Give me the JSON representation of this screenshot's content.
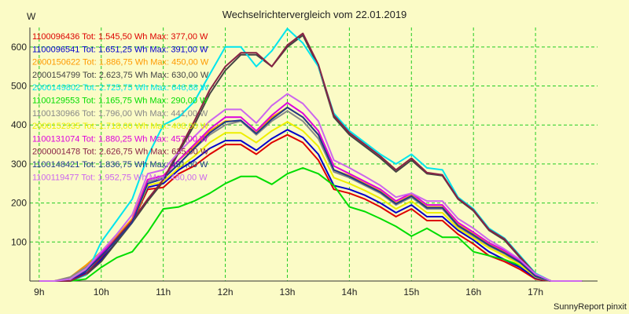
{
  "chart_data": {
    "type": "line",
    "title": "Wechselrichtervergleich vom 22.01.2019",
    "ylabel": "W",
    "xlabel": "",
    "footer": "SunnyReport pinxit",
    "ylim": [
      0,
      650
    ],
    "yticks": [
      100,
      200,
      300,
      400,
      500,
      600
    ],
    "xticks": [
      "9h",
      "10h",
      "11h",
      "12h",
      "13h",
      "14h",
      "15h",
      "16h",
      "17h"
    ],
    "grid": true,
    "grid_color": "#22cc22",
    "legend_position": "top-left",
    "x": [
      9.0,
      9.25,
      9.5,
      9.75,
      10.0,
      10.25,
      10.5,
      10.75,
      11.0,
      11.25,
      11.5,
      11.75,
      12.0,
      12.25,
      12.5,
      12.75,
      13.0,
      13.25,
      13.5,
      13.75,
      14.0,
      14.25,
      14.5,
      14.75,
      15.0,
      15.25,
      15.5,
      15.75,
      16.0,
      16.25,
      16.5,
      16.75,
      17.0,
      17.25,
      17.5,
      17.75
    ],
    "series": [
      {
        "name": "1100096436 Tot: 1.545,50 Wh Max: 377,00 W",
        "color": "#dd0000",
        "values": [
          0,
          0,
          5,
          20,
          55,
          100,
          150,
          235,
          240,
          275,
          295,
          325,
          350,
          350,
          325,
          355,
          375,
          355,
          310,
          235,
          225,
          210,
          190,
          165,
          185,
          155,
          155,
          120,
          95,
          65,
          50,
          30,
          5,
          0,
          0,
          0
        ]
      },
      {
        "name": "1100096541 Tot: 1.651,25 Wh Max: 391,00 W",
        "color": "#0000cc",
        "values": [
          0,
          0,
          5,
          20,
          55,
          100,
          155,
          240,
          250,
          285,
          310,
          340,
          360,
          360,
          335,
          365,
          388,
          368,
          325,
          245,
          235,
          220,
          200,
          175,
          195,
          165,
          165,
          130,
          105,
          75,
          55,
          35,
          8,
          0,
          0,
          0
        ]
      },
      {
        "name": "2000150622 Tot: 1.886,75 Wh Max: 450,00 W",
        "color": "#ff9900",
        "values": [
          0,
          0,
          10,
          40,
          75,
          115,
          160,
          260,
          270,
          310,
          345,
          385,
          410,
          410,
          380,
          420,
          445,
          420,
          375,
          285,
          270,
          250,
          230,
          200,
          220,
          190,
          190,
          145,
          120,
          95,
          75,
          50,
          15,
          0,
          0,
          0
        ]
      },
      {
        "name": "2000154799 Tot: 2.623,75 Wh Max: 630,00 W",
        "color": "#444444",
        "values": [
          0,
          0,
          0,
          15,
          50,
          100,
          150,
          205,
          255,
          330,
          400,
          480,
          540,
          580,
          580,
          550,
          600,
          630,
          550,
          420,
          375,
          345,
          315,
          280,
          310,
          275,
          270,
          210,
          180,
          130,
          105,
          60,
          15,
          0,
          0,
          0
        ]
      },
      {
        "name": "2000149802 Tot: 2.725,75 Wh Max: 646,88 W",
        "color": "#00e5ee",
        "values": [
          0,
          0,
          0,
          15,
          100,
          155,
          210,
          320,
          400,
          420,
          460,
          530,
          600,
          600,
          550,
          590,
          647,
          610,
          550,
          430,
          385,
          355,
          325,
          300,
          325,
          290,
          285,
          215,
          185,
          135,
          110,
          65,
          20,
          0,
          0,
          0
        ]
      },
      {
        "name": "1100129553 Tot: 1.165,75 Wh Max: 290,00 W",
        "color": "#00dd00",
        "values": [
          0,
          0,
          0,
          5,
          35,
          60,
          75,
          125,
          185,
          190,
          205,
          225,
          250,
          268,
          268,
          248,
          275,
          290,
          275,
          245,
          190,
          178,
          160,
          140,
          115,
          135,
          112,
          112,
          75,
          65,
          55,
          40,
          15,
          0,
          0,
          0
        ]
      },
      {
        "name": "1100130966 Tot: 1.796,00 Wh Max: 441,00 W",
        "color": "#888888",
        "values": [
          0,
          0,
          10,
          35,
          70,
          110,
          155,
          255,
          265,
          300,
          340,
          375,
          400,
          410,
          375,
          410,
          436,
          410,
          365,
          280,
          265,
          245,
          225,
          195,
          215,
          185,
          185,
          140,
          115,
          90,
          70,
          45,
          12,
          0,
          0,
          0
        ]
      },
      {
        "name": "2000152935 Tot: 1.718,00 Wh Max: 408,00 W",
        "color": "#eeee00",
        "values": [
          0,
          0,
          5,
          30,
          65,
          105,
          150,
          245,
          255,
          290,
          320,
          355,
          380,
          380,
          355,
          385,
          408,
          385,
          345,
          265,
          250,
          232,
          212,
          185,
          205,
          175,
          175,
          135,
          110,
          85,
          65,
          42,
          10,
          0,
          0,
          0
        ]
      },
      {
        "name": "1100131074 Tot: 1.880,25 Wh Max: 457,00 W",
        "color": "#dd00dd",
        "values": [
          0,
          0,
          5,
          25,
          70,
          110,
          155,
          260,
          270,
          310,
          350,
          390,
          420,
          420,
          385,
          425,
          457,
          430,
          385,
          295,
          275,
          255,
          235,
          205,
          225,
          195,
          195,
          150,
          125,
          98,
          78,
          52,
          15,
          0,
          0,
          0
        ]
      },
      {
        "name": "2000001478 Tot: 2.626,75 Wh Max: 635,00 W",
        "color": "#882244",
        "values": [
          0,
          0,
          0,
          18,
          60,
          110,
          155,
          210,
          260,
          335,
          410,
          490,
          550,
          585,
          585,
          550,
          605,
          635,
          555,
          425,
          380,
          350,
          320,
          285,
          315,
          278,
          272,
          212,
          182,
          132,
          108,
          62,
          18,
          0,
          0,
          0
        ]
      },
      {
        "name": "1100148421 Tot: 1.836,75 Wh Max: 451,00 W",
        "color": "#1f3a8a",
        "values": [
          0,
          0,
          5,
          25,
          65,
          105,
          150,
          250,
          262,
          300,
          340,
          380,
          408,
          412,
          378,
          415,
          445,
          420,
          375,
          285,
          268,
          248,
          228,
          198,
          218,
          188,
          188,
          142,
          118,
          92,
          72,
          48,
          12,
          0,
          0,
          0
        ]
      },
      {
        "name": "1100119477 Tot: 1.952,75 Wh Max: 480,00 W",
        "color": "#cc66ee",
        "values": [
          0,
          0,
          5,
          30,
          75,
          120,
          170,
          275,
          285,
          330,
          370,
          410,
          440,
          440,
          405,
          450,
          480,
          455,
          410,
          310,
          290,
          268,
          245,
          215,
          225,
          205,
          205,
          160,
          135,
          105,
          82,
          55,
          18,
          0,
          0,
          0
        ]
      }
    ]
  }
}
